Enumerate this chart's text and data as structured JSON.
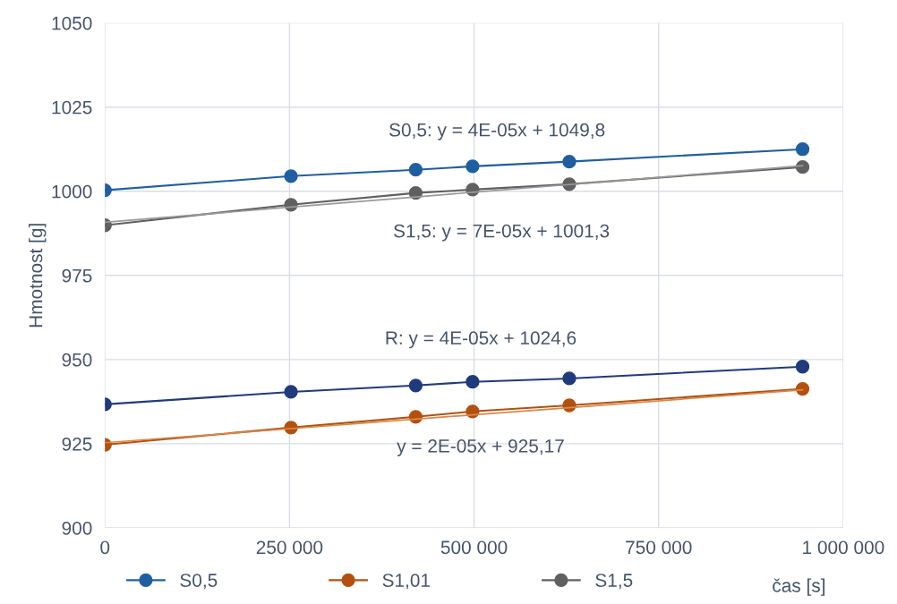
{
  "chart_data": {
    "type": "line",
    "xlabel": "čas [s]",
    "ylabel": "Hmotnost [g]",
    "x": [
      0,
      252000,
      421000,
      498000,
      629000,
      945000
    ],
    "series": [
      {
        "name": "S0,5",
        "color": "#1f5fa0",
        "values": [
          1000.3,
          1004.5,
          1006.4,
          1007.4,
          1008.8,
          1012.5
        ]
      },
      {
        "name": "S1,01",
        "color": "#b3500f",
        "values": [
          924.7,
          929.8,
          933,
          934.6,
          936.4,
          941.3
        ]
      },
      {
        "name": "S1,5",
        "color": "#606060",
        "values": [
          989.9,
          996,
          999.5,
          1000.5,
          1002.1,
          1007.2
        ]
      },
      {
        "color": "#203b7c",
        "values": [
          936.7,
          940.4,
          942.3,
          943.4,
          944.4,
          947.9
        ]
      },
      {
        "type": "line",
        "color": "#d9884a",
        "marker": "none",
        "values": [
          925.3,
          929.5,
          932.3,
          933.6,
          935.7,
          941.0
        ]
      },
      {
        "type": "line",
        "color": "#9a9a9a",
        "marker": "none",
        "values": [
          990.8,
          995.3,
          998.3,
          999.7,
          1002.0,
          1007.6
        ]
      }
    ],
    "xlim": [
      0,
      1000000
    ],
    "xticks": [
      0,
      {
        "value": 250000,
        "label": "250 000"
      },
      {
        "value": 500000,
        "label": "500 000"
      },
      {
        "value": 750000,
        "label": "750 000"
      },
      {
        "value": 1000000,
        "label": "1 000 000"
      }
    ],
    "ylim": [
      900,
      1050
    ],
    "yticks": [
      900,
      925,
      950,
      975,
      1000,
      1025,
      1050
    ],
    "grid": true,
    "legend": "bottom",
    "marker": "circle",
    "line_style": "solid",
    "annotations": [
      "S0,5: y = 4E-05x + 1049,8",
      "S1,5: y = 7E-05x + 1001,3",
      "R: y = 4E-05x + 1024,6",
      "y = 2E-05x + 925,17"
    ]
  }
}
